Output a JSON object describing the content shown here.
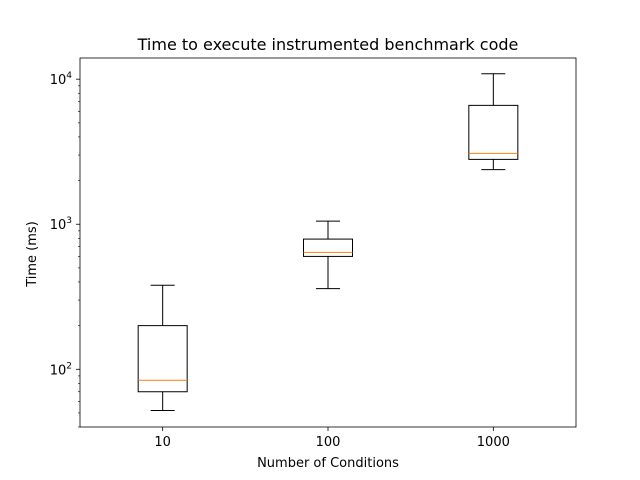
{
  "chart_data": {
    "type": "box",
    "title": "Time to execute instrumented benchmark code",
    "xlabel": "Number of Conditions",
    "ylabel": "Time (ms)",
    "yscale": "log",
    "ylim": [
      40,
      14000
    ],
    "categories": [
      "10",
      "100",
      "1000"
    ],
    "ytick_base": "10",
    "yticks": [
      {
        "value": 100,
        "exp": "2"
      },
      {
        "value": 1000,
        "exp": "3"
      },
      {
        "value": 10000,
        "exp": "4"
      }
    ],
    "boxes": [
      {
        "category": "10",
        "whisker_low": 52,
        "q1": 70,
        "median": 84,
        "q3": 200,
        "whisker_high": 380
      },
      {
        "category": "100",
        "whisker_low": 360,
        "q1": 600,
        "median": 640,
        "q3": 790,
        "whisker_high": 1050
      },
      {
        "category": "1000",
        "whisker_low": 2380,
        "q1": 2800,
        "median": 3080,
        "q3": 6600,
        "whisker_high": 10900
      }
    ],
    "grid": false,
    "colors": {
      "box": "#000000",
      "median": "#ff7f0e"
    }
  }
}
